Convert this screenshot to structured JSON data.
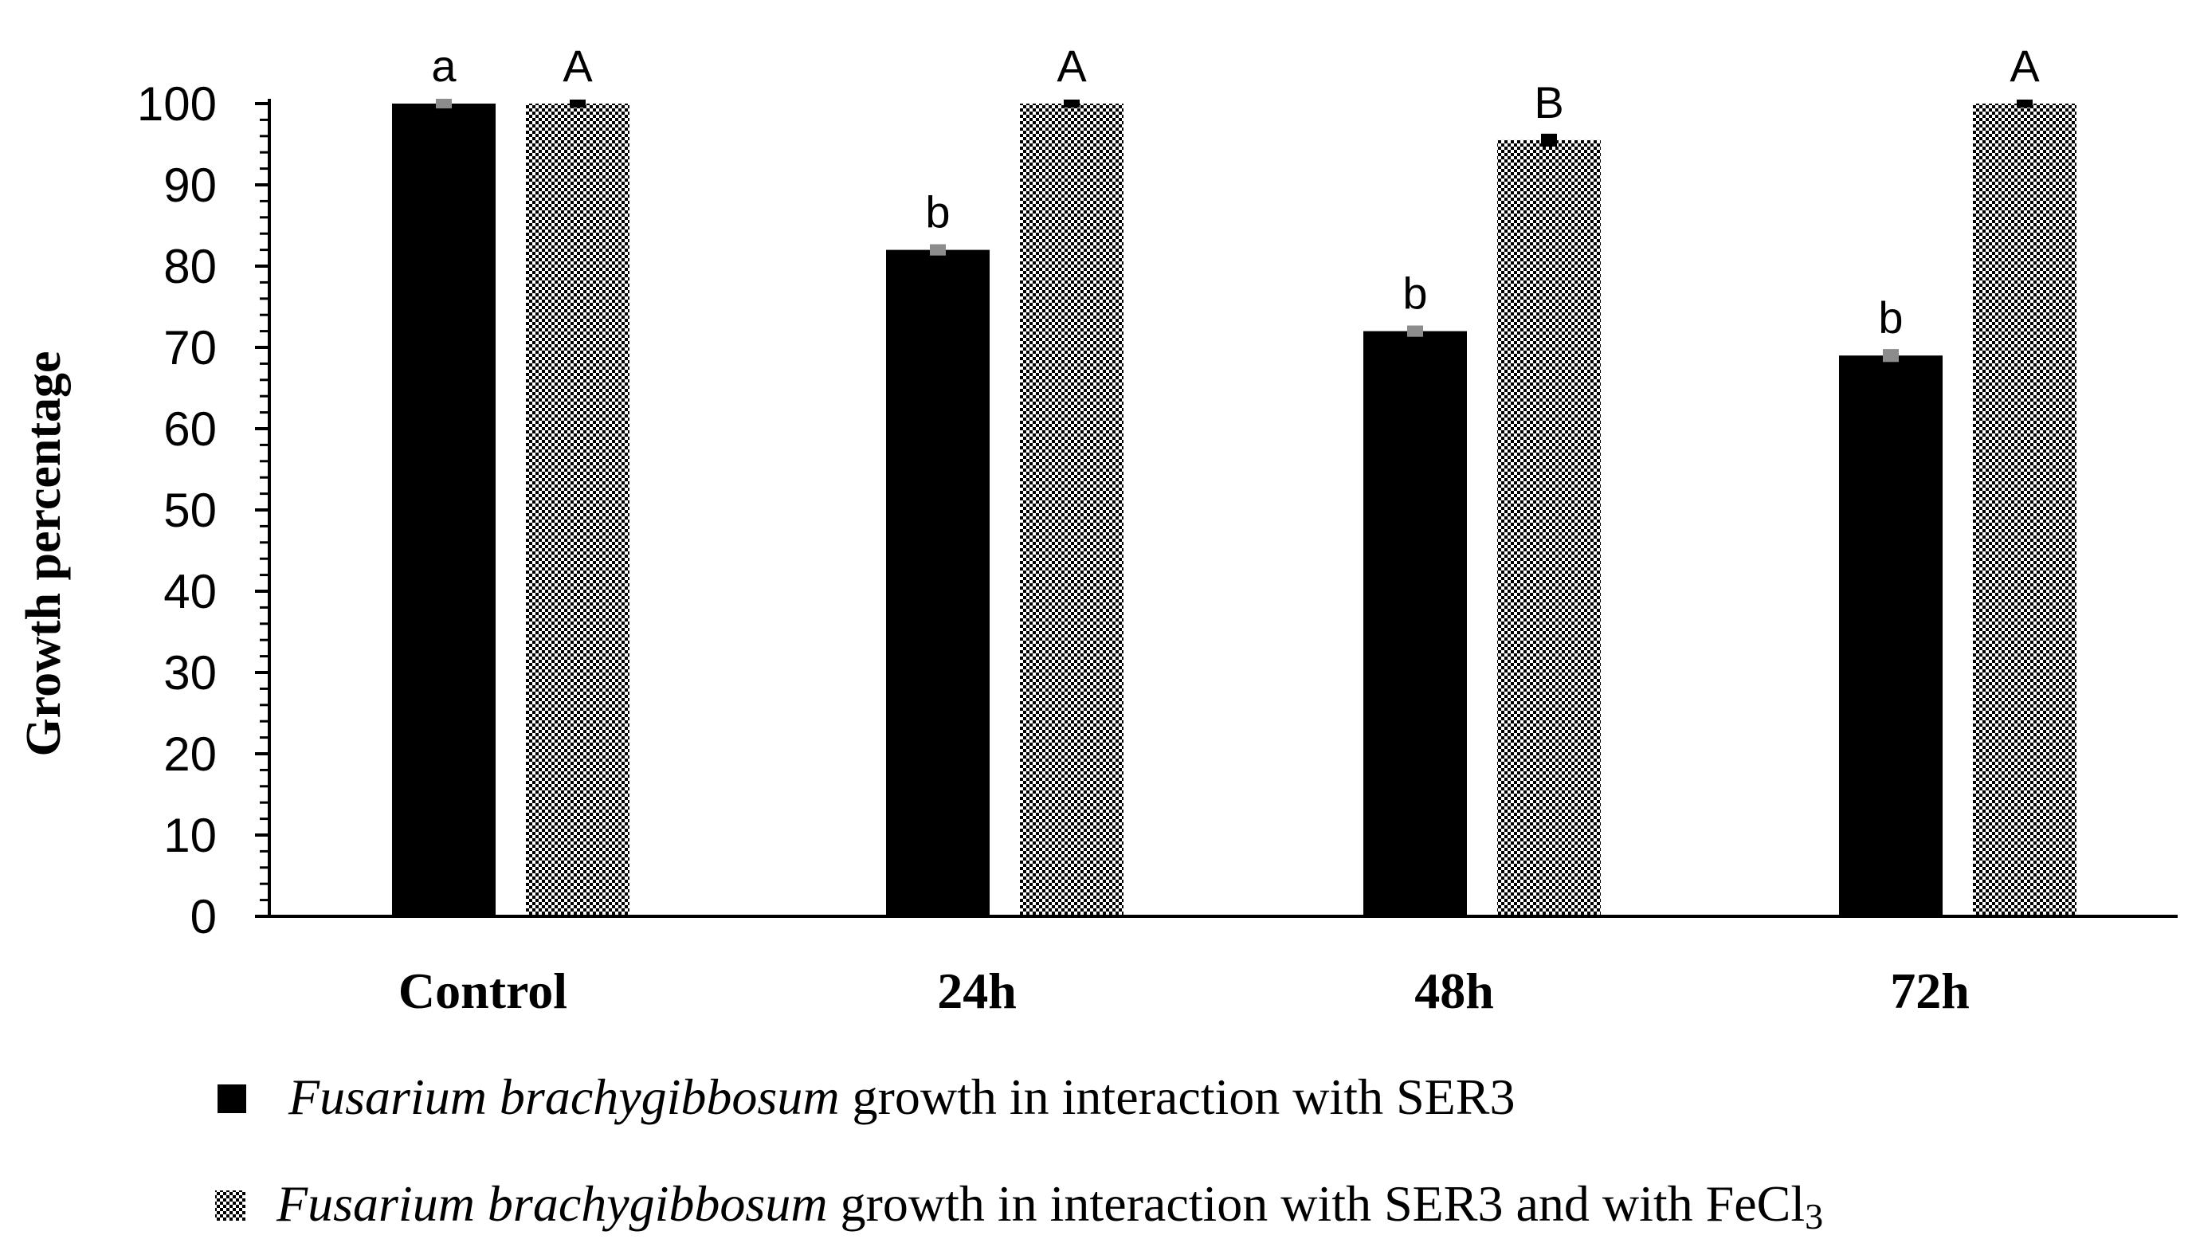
{
  "chart_data": {
    "type": "bar",
    "title": "",
    "xlabel": "",
    "ylabel": "Growth percentage",
    "ylim": [
      0,
      100
    ],
    "yticks": [
      0,
      10,
      20,
      30,
      40,
      50,
      60,
      70,
      80,
      90,
      100
    ],
    "categories": [
      "Control",
      "24h",
      "48h",
      "72h"
    ],
    "series": [
      {
        "name_italic": "Fusarium brachygibbosum",
        "name_rest": " growth in interaction with SER3",
        "fill": "solid",
        "color": "#000000",
        "values": [
          100,
          82,
          72,
          69
        ],
        "errors": [
          0.3,
          0.4,
          0.4,
          0.5
        ],
        "letters": [
          "a",
          "b",
          "b",
          "b"
        ]
      },
      {
        "name_italic": "Fusarium brachygibbosum",
        "name_rest": " growth in interaction with SER3 and with FeCl",
        "name_sub": "3",
        "fill": "checkered",
        "color": "#000000",
        "values": [
          100,
          100,
          95.5,
          100
        ],
        "errors": [
          0.2,
          0.2,
          0.5,
          0.2
        ],
        "letters": [
          "A",
          "A",
          "B",
          "A"
        ]
      }
    ],
    "grid": false,
    "legend_position": "bottom"
  }
}
